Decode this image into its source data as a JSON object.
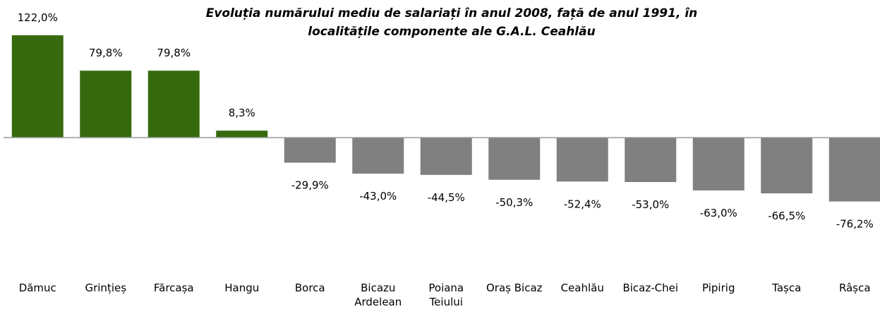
{
  "chart_data": {
    "type": "bar",
    "title": "Evoluția numărului mediu de salariați în anul 2008, față de anul 1991, în localitățile componente ale G.A.L. Ceahlău",
    "categories": [
      "Dămuc",
      "Grințieș",
      "Fărcașa",
      "Hangu",
      "Borca",
      "Bicazu Ardelean",
      "Poiana Teiului",
      "Oraș Bicaz",
      "Ceahlău",
      "Bicaz-Chei",
      "Pipirig",
      "Tașca",
      "Râșca"
    ],
    "values": [
      122.0,
      79.8,
      79.8,
      8.3,
      -29.9,
      -43.0,
      -44.5,
      -50.3,
      -52.4,
      -53.0,
      -63.0,
      -66.5,
      -76.2
    ],
    "value_labels": [
      "122,0%",
      "79,8%",
      "79,8%",
      "8,3%",
      "-29,9%",
      "-43,0%",
      "-44,5%",
      "-50,3%",
      "-52,4%",
      "-53,0%",
      "-63,0%",
      "-66,5%",
      "-76,2%"
    ],
    "positive_color": "#376a0e",
    "negative_color": "#808080"
  }
}
